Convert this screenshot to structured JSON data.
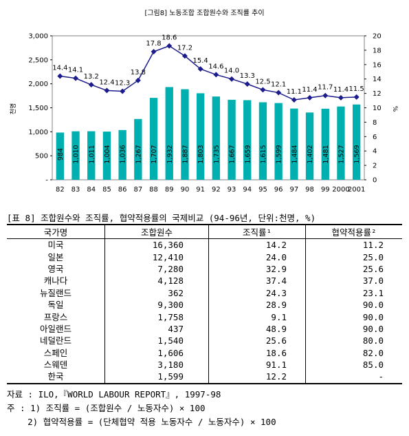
{
  "chart_data": {
    "type": "bar+line",
    "title": "[그림8] 노동조합 조합원수와 조직률 추이",
    "categories": [
      "82",
      "83",
      "84",
      "85",
      "86",
      "87",
      "88",
      "89",
      "90",
      "91",
      "92",
      "93",
      "94",
      "95",
      "96",
      "97",
      "98",
      "99",
      "2000",
      "2001"
    ],
    "series": [
      {
        "axis": "left",
        "kind": "bar",
        "values": [
          984,
          1010,
          1011,
          1004,
          1036,
          1267,
          1707,
          1932,
          1887,
          1803,
          1735,
          1667,
          1659,
          1615,
          1599,
          1484,
          1402,
          1481,
          1527,
          1569
        ]
      },
      {
        "axis": "right",
        "kind": "line",
        "values": [
          14.4,
          14.1,
          13.2,
          12.4,
          12.3,
          13.8,
          17.8,
          18.6,
          17.2,
          15.4,
          14.6,
          14.0,
          13.3,
          12.5,
          12.1,
          11.1,
          11.4,
          11.7,
          11.4,
          11.5
        ]
      }
    ],
    "ylabel_left": "천명",
    "ylabel_right": "%",
    "ylim_left": [
      0,
      3000
    ],
    "ylim_right": [
      0,
      20
    ],
    "yticks_left": [
      "-",
      "500",
      "1,000",
      "1,500",
      "2,000",
      "2,500",
      "3,000"
    ],
    "yticks_right": [
      "0",
      "2",
      "4",
      "6",
      "8",
      "10",
      "12",
      "14",
      "16",
      "18",
      "20"
    ],
    "colors": {
      "bar": "#00B0B0",
      "line": "#1C1C8C"
    }
  },
  "table": {
    "caption": "[표 8] 조합원수와 조직률, 협약적용률의 국제비교 (94-96년, 단위:천명, %)",
    "headers": [
      "국가명",
      "조합원수",
      "조직률¹",
      "협약적용률²"
    ],
    "rows": [
      [
        "미국",
        "16,360",
        "14.2",
        "11.2"
      ],
      [
        "일본",
        "12,410",
        "24.0",
        "25.0"
      ],
      [
        "영국",
        "7,280",
        "32.9",
        "25.6"
      ],
      [
        "캐나다",
        "4,128",
        "37.4",
        "37.0"
      ],
      [
        "뉴질랜드",
        "362",
        "24.3",
        "23.1"
      ],
      [
        "독일",
        "9,300",
        "28.9",
        "90.0"
      ],
      [
        "프랑스",
        "1,758",
        "9.1",
        "90.0"
      ],
      [
        "아일랜드",
        "437",
        "48.9",
        "90.0"
      ],
      [
        "네덜란드",
        "1,540",
        "25.6",
        "80.0"
      ],
      [
        "스페인",
        "1,606",
        "18.6",
        "82.0"
      ],
      [
        "스웨덴",
        "3,180",
        "91.1",
        "85.0"
      ],
      [
        "한국",
        "1,599",
        "12.2",
        "-"
      ]
    ]
  },
  "notes": {
    "source": "자료 : ILO,『WORLD LABOUR REPORT』, 1997-98",
    "note1": "주 : 1) 조직률 = (조합원수 / 노동자수) × 100",
    "note2": "    2) 협약적용률 = (단체협약 적용 노동자수 / 노동자수) × 100"
  }
}
